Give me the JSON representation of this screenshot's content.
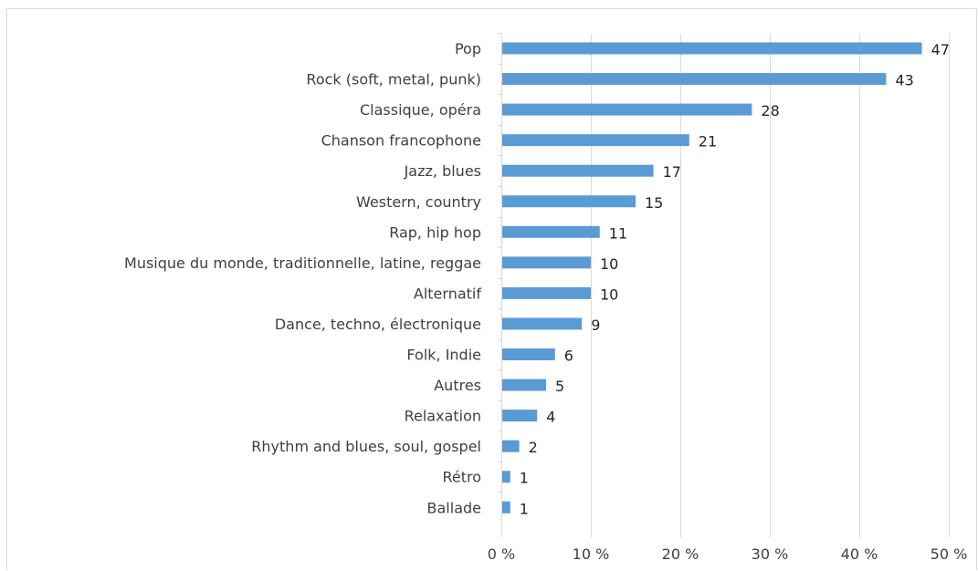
{
  "header_fragment": "",
  "colors": {
    "bar": "#5b9bd5",
    "grid": "#d9d9d9",
    "text": "#404040"
  },
  "chart_data": {
    "type": "bar",
    "orientation": "horizontal",
    "title": "",
    "xlabel": "",
    "ylabel": "",
    "categories": [
      "Pop",
      "Rock (soft, metal, punk)",
      "Classique, opéra",
      "Chanson francophone",
      "Jazz, blues",
      "Western, country",
      "Rap, hip hop",
      "Musique du monde, traditionnelle, latine, reggae",
      "Alternatif",
      "Dance, techno, électronique",
      "Folk, Indie",
      "Autres",
      "Relaxation",
      "Rhythm and blues, soul, gospel",
      "Rétro",
      "Ballade"
    ],
    "values": [
      47,
      43,
      28,
      21,
      17,
      15,
      11,
      10,
      10,
      9,
      6,
      5,
      4,
      2,
      1,
      1
    ],
    "data_labels": [
      "47",
      "43",
      "28",
      "21",
      "17",
      "15",
      "11",
      "10",
      "10",
      "9",
      "6",
      "5",
      "4",
      "2",
      "1",
      "1"
    ],
    "xlim": [
      0,
      50
    ],
    "x_ticks": [
      0,
      10,
      20,
      30,
      40,
      50
    ],
    "x_tick_labels": [
      "0 %",
      "10 %",
      "20 %",
      "30 %",
      "40 %",
      "50 %"
    ],
    "grid": true,
    "legend": "none"
  }
}
